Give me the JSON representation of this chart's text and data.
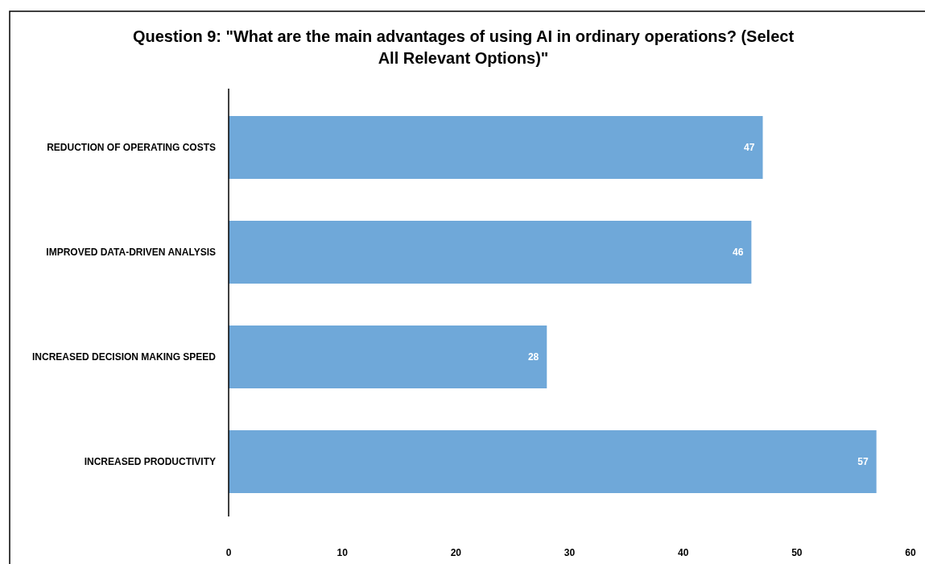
{
  "chart_data": {
    "type": "bar",
    "orientation": "horizontal",
    "title": "Question 9: \"What are the main advantages of using AI in ordinary operations? (Select All Relevant Options)\"",
    "categories": [
      "REDUCTION OF OPERATING COSTS",
      "IMPROVED DATA-DRIVEN ANALYSIS",
      "INCREASED DECISION MAKING SPEED",
      "INCREASED PRODUCTIVITY"
    ],
    "values": [
      47,
      46,
      28,
      57
    ],
    "color": "#6fa8d9",
    "xlim": [
      0,
      60
    ],
    "xticks": [
      0,
      10,
      20,
      30,
      40,
      50,
      60
    ],
    "grid": false,
    "data_labels": true
  }
}
